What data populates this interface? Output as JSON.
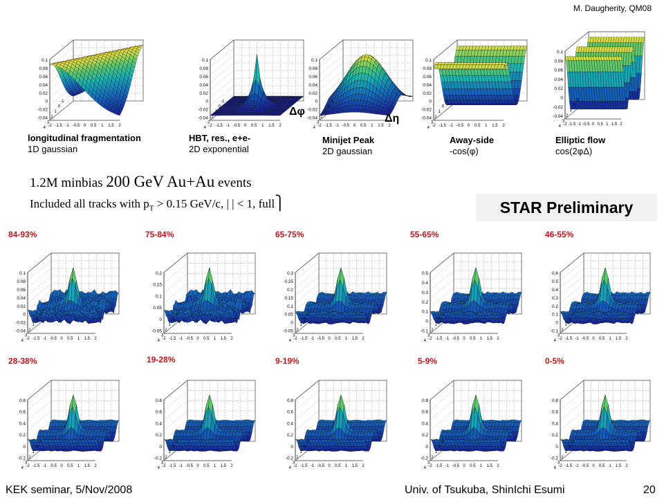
{
  "credit": "M. Daugherity, QM08",
  "models": [
    {
      "name": "longitudinal fragmentation",
      "form": "1D gaussian",
      "surface": "ridge_d",
      "ticks": [
        "0.1",
        "0.08",
        "0.06",
        "0.04",
        "0.02",
        "0",
        "-0.02",
        "-0.04"
      ]
    },
    {
      "name": "HBT, res., e+e-",
      "form": "2D exponential",
      "surface": "exp",
      "ticks": [
        "0.1",
        "0.08",
        "0.06",
        "0.04",
        "0.02",
        "0",
        "-0.02",
        "-0.04"
      ]
    },
    {
      "name": "Minijet Peak",
      "form": "2D gaussian",
      "surface": "gauss",
      "ticks": [
        "0.1",
        "0.08",
        "0.06",
        "0.04",
        "0.02",
        "0",
        "-0.02",
        "-0.04"
      ]
    },
    {
      "name": "Away-side",
      "form": "-cos(φ)",
      "surface": "away",
      "ticks": [
        "0.1",
        "0.08",
        "0.06",
        "0.04",
        "0.02",
        "0",
        "-0.02",
        "-0.04"
      ]
    },
    {
      "name": "Elliptic flow",
      "form": "cos(2φΔ)",
      "surface": "v2",
      "ticks": [
        "0.1",
        "0.08",
        "0.06",
        "0.04",
        "0.02",
        "0",
        "-0.02",
        "-0.04"
      ]
    }
  ],
  "axis_labels": {
    "dphi": "Δφ",
    "deta": "Δη"
  },
  "x_ticks": [
    "-2",
    "-1.5",
    "-1",
    "-0.5",
    "0",
    "0.5",
    "1",
    "1.5",
    "2"
  ],
  "y_ticks": [
    "4",
    "3",
    "2",
    "1",
    "0",
    "-1"
  ],
  "events_line": {
    "pre": "1.2M minbias ",
    "energy": "200 GeV Au+Au",
    "post": " events"
  },
  "tracks_line": "Included all tracks with p",
  "tracks_sub": "T",
  "tracks_rest": " > 0.15 GeV/c, |  | < 1, full",
  "preliminary": "STAR Preliminary",
  "centralities": [
    {
      "label": "84-93%",
      "ticks": [
        "0.1",
        "0.08",
        "0.06",
        "0.04",
        "0.02",
        "0",
        "-0.02",
        "-0.04"
      ]
    },
    {
      "label": "75-84%",
      "ticks": [
        "0.2",
        "0.15",
        "0.1",
        "0.05",
        "0",
        "-0.05"
      ]
    },
    {
      "label": "65-75%",
      "ticks": [
        "0.3",
        "0.25",
        "0.2",
        "0.15",
        "0.1",
        "0.05",
        "0",
        "-0.05"
      ]
    },
    {
      "label": "55-65%",
      "ticks": [
        "0.5",
        "0.4",
        "0.3",
        "0.2",
        "0.1",
        "0",
        "-0.1"
      ]
    },
    {
      "label": "46-55%",
      "ticks": [
        "0.6",
        "0.5",
        "0.4",
        "0.3",
        "0.2",
        "0.1",
        "0",
        "-0.1"
      ]
    },
    {
      "label": "28-38%",
      "ticks": [
        "0.8",
        "0.6",
        "0.4",
        "0.2",
        "0",
        "-0.2"
      ]
    },
    {
      "label": "19-28%",
      "ticks": [
        "0.8",
        "0.6",
        "0.4",
        "0.2",
        "0",
        "-0.2"
      ]
    },
    {
      "label": "9-19%",
      "ticks": [
        "0.8",
        "0.6",
        "0.4",
        "0.2",
        "0",
        "-0.2"
      ]
    },
    {
      "label": "5-9%",
      "ticks": [
        "0.8",
        "0.6",
        "0.4",
        "0.2",
        "0",
        "-0.2"
      ]
    },
    {
      "label": "0-5%",
      "ticks": [
        "0.8",
        "0.6",
        "0.4",
        "0.2",
        "0",
        "-0.2"
      ]
    }
  ],
  "footer": {
    "left": "KEK seminar, 5/Nov/2008",
    "center": "Univ. of Tsukuba, ShinIchi Esumi",
    "page": "20"
  },
  "colors": {
    "centrality_label": "#c0171c",
    "surface_low": "#1a2aa8",
    "surface_mid": "#19a6b4",
    "surface_high": "#f2e53a"
  }
}
